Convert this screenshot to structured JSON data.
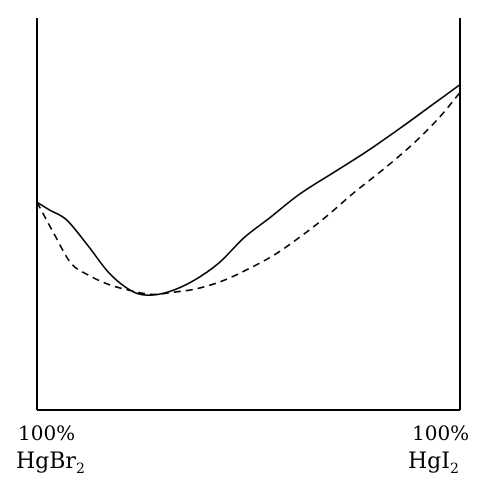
{
  "chart_data": {
    "type": "line",
    "title": "",
    "xlabel": "",
    "ylabel": "",
    "x_tick_labels": {
      "left_percent": "100%",
      "left_compound": "HgBr",
      "left_subscript": "2",
      "right_percent": "100%",
      "right_compound": "HgI",
      "right_subscript": "2"
    },
    "xlim": [
      0,
      100
    ],
    "ylim": [
      0,
      100
    ],
    "grid": false,
    "legend": "none",
    "series": [
      {
        "style": "solid",
        "x": [
          0,
          3,
          7,
          12,
          17,
          22,
          26,
          31,
          37,
          43,
          49,
          55,
          62,
          70,
          78,
          86,
          93,
          100
        ],
        "y": [
          53,
          51,
          48.5,
          42,
          35,
          30.6,
          29.3,
          30.1,
          33,
          37.5,
          44,
          49,
          55,
          60.5,
          66,
          72,
          77.5,
          83
        ]
      },
      {
        "style": "dashed",
        "x": [
          0,
          4,
          8,
          12,
          17,
          22,
          27,
          32,
          38,
          44,
          50,
          56,
          62,
          68,
          75,
          82,
          89,
          95,
          100
        ],
        "y": [
          53,
          45,
          37.5,
          34.5,
          32,
          30.5,
          29.5,
          30,
          31,
          33,
          36,
          39.5,
          44,
          49,
          55.5,
          61.5,
          68,
          74.5,
          81
        ]
      }
    ],
    "colors": {
      "line": "#000000",
      "background": "#ffffff"
    }
  }
}
